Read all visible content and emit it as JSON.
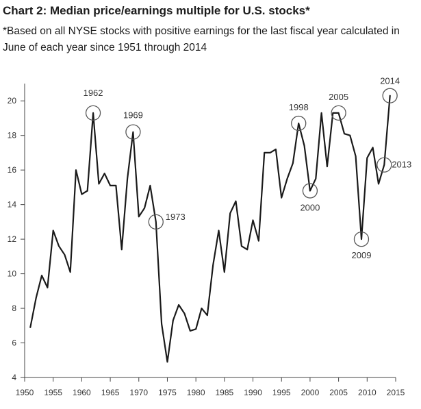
{
  "chart_data": {
    "type": "line",
    "title": "Chart 2: Median price/earnings multiple for U.S. stocks*",
    "subtitle": "*Based on all NYSE stocks with positive earnings for the last fiscal year calculated in June of each year since 1951 through 2014",
    "xlabel": "",
    "ylabel": "",
    "xlim": [
      1950,
      2015
    ],
    "ylim": [
      4,
      21
    ],
    "xticks": [
      1950,
      1955,
      1960,
      1965,
      1970,
      1975,
      1980,
      1985,
      1990,
      1995,
      2000,
      2005,
      2010,
      2015
    ],
    "yticks": [
      4,
      6,
      8,
      10,
      12,
      14,
      16,
      18,
      20
    ],
    "grid": false,
    "series": [
      {
        "name": "Median P/E",
        "color": "#1a1a1a",
        "x": [
          1951,
          1952,
          1953,
          1954,
          1955,
          1956,
          1957,
          1958,
          1959,
          1960,
          1961,
          1962,
          1963,
          1964,
          1965,
          1966,
          1967,
          1968,
          1969,
          1970,
          1971,
          1972,
          1973,
          1974,
          1975,
          1976,
          1977,
          1978,
          1979,
          1980,
          1981,
          1982,
          1983,
          1984,
          1985,
          1986,
          1987,
          1988,
          1989,
          1990,
          1991,
          1992,
          1993,
          1994,
          1995,
          1996,
          1997,
          1998,
          1999,
          2000,
          2001,
          2002,
          2003,
          2004,
          2005,
          2006,
          2007,
          2008,
          2009,
          2010,
          2011,
          2012,
          2013,
          2014
        ],
        "y": [
          6.9,
          8.6,
          9.9,
          9.2,
          12.5,
          11.6,
          11.1,
          10.1,
          16.0,
          14.6,
          14.8,
          19.3,
          15.2,
          15.8,
          15.1,
          15.1,
          11.4,
          15.5,
          18.2,
          13.3,
          13.8,
          15.1,
          13.0,
          7.1,
          4.9,
          7.3,
          8.2,
          7.7,
          6.7,
          6.8,
          8.0,
          7.6,
          10.5,
          12.5,
          10.1,
          13.5,
          14.2,
          11.6,
          11.4,
          13.1,
          11.9,
          17.0,
          17.0,
          17.2,
          14.4,
          15.5,
          16.4,
          18.7,
          17.4,
          14.8,
          15.5,
          19.3,
          16.2,
          19.3,
          19.3,
          18.1,
          18.0,
          16.8,
          12.0,
          16.7,
          17.3,
          15.2,
          16.3,
          20.3
        ]
      }
    ],
    "annotations": [
      {
        "label": "1962",
        "x": 1962,
        "y": 19.3
      },
      {
        "label": "1969",
        "x": 1969,
        "y": 18.2
      },
      {
        "label": "1973",
        "x": 1973,
        "y": 13.0
      },
      {
        "label": "1998",
        "x": 1998,
        "y": 18.7
      },
      {
        "label": "2000",
        "x": 2000,
        "y": 14.8
      },
      {
        "label": "2005",
        "x": 2005,
        "y": 19.3
      },
      {
        "label": "2009",
        "x": 2009,
        "y": 12.0
      },
      {
        "label": "2013",
        "x": 2013,
        "y": 16.3
      },
      {
        "label": "2014",
        "x": 2014,
        "y": 20.3
      }
    ]
  }
}
